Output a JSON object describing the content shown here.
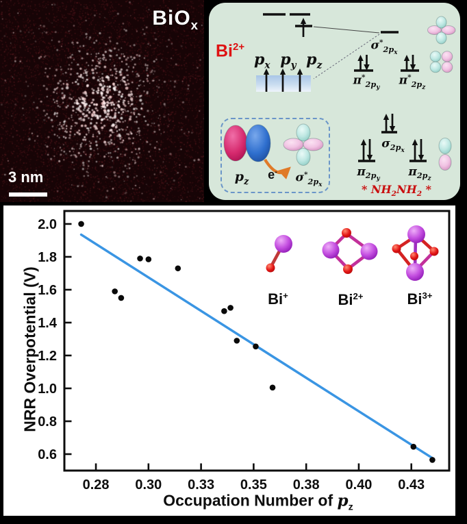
{
  "stem": {
    "label": {
      "base": "BiO",
      "sub": "x"
    },
    "scale_text": "3 nm"
  },
  "mo": {
    "bi_ion": {
      "base": "Bi",
      "sup": "2+"
    },
    "px": {
      "base": "p",
      "sub": "x"
    },
    "py": {
      "base": "p",
      "sub": "y"
    },
    "pz": {
      "base": "p",
      "sub": "z"
    },
    "sigma_star_2px": {
      "base": "σ",
      "sup": "*",
      "sub": "2p",
      "subsub": "x"
    },
    "pi_star_2py": {
      "base": "π",
      "sup": "*",
      "sub": "2p",
      "subsub": "y"
    },
    "pi_star_2pz": {
      "base": "π",
      "sup": "*",
      "sub": "2p",
      "subsub": "z"
    },
    "sigma_2px": {
      "base": "σ",
      "sub": "2p",
      "subsub": "x"
    },
    "pi_2py": {
      "base": "π",
      "sub": "2p",
      "subsub": "y"
    },
    "pi_2pz": {
      "base": "π",
      "sub": "2p",
      "subsub": "z"
    },
    "box_pz": {
      "base": "p",
      "sub": "z"
    },
    "electron": {
      "base": "e",
      "sup": "-"
    },
    "box_sigma_star": {
      "base": "σ",
      "sup": "*",
      "sub": "2p",
      "subsub": "x"
    },
    "hydrazine": {
      "pre": "* ",
      "a": "NH",
      "a_sub": "2",
      "b": "NH",
      "b_sub": "2",
      "post": " *"
    }
  },
  "chart": {
    "ylabel": "NRR Overpotential (V)",
    "xlabel": {
      "prefix": "Occupation Number of ",
      "symbol": "p",
      "sub": "z"
    },
    "inset": {
      "bi1": {
        "base": "Bi",
        "sup": "+"
      },
      "bi2": {
        "base": "Bi",
        "sup": "2+"
      },
      "bi3": {
        "base": "Bi",
        "sup": "3+"
      }
    }
  },
  "chart_data": {
    "type": "scatter",
    "title": "",
    "xlabel": "Occupation Number of pz",
    "ylabel": "NRR Overpotential (V)",
    "xlim": [
      0.26,
      0.443
    ],
    "ylim": [
      0.5,
      2.079
    ],
    "grid": false,
    "x_ticks": [
      {
        "value": 0.275,
        "label": "0.28"
      },
      {
        "value": 0.3,
        "label": "0.30"
      },
      {
        "value": 0.325,
        "label": "0.33"
      },
      {
        "value": 0.35,
        "label": "0.35"
      },
      {
        "value": 0.375,
        "label": "0.38"
      },
      {
        "value": 0.4,
        "label": "0.40"
      },
      {
        "value": 0.425,
        "label": "0.43"
      }
    ],
    "y_ticks": [
      {
        "value": 2.0,
        "label": "2.0"
      },
      {
        "value": 1.8,
        "label": "1.8"
      },
      {
        "value": 1.6,
        "label": "1.6"
      },
      {
        "value": 1.4,
        "label": "1.4"
      },
      {
        "value": 1.2,
        "label": "1.2"
      },
      {
        "value": 1.0,
        "label": "1.0"
      },
      {
        "value": 0.8,
        "label": "0.8"
      },
      {
        "value": 0.6,
        "label": "0.6"
      }
    ],
    "points": [
      [
        0.268,
        2.0
      ],
      [
        0.284,
        1.59
      ],
      [
        0.287,
        1.55
      ],
      [
        0.296,
        1.79
      ],
      [
        0.3,
        1.785
      ],
      [
        0.314,
        1.73
      ],
      [
        0.336,
        1.47
      ],
      [
        0.339,
        1.49
      ],
      [
        0.342,
        1.29
      ],
      [
        0.351,
        1.255
      ],
      [
        0.359,
        1.005
      ],
      [
        0.426,
        0.645
      ],
      [
        0.435,
        0.565
      ]
    ],
    "trend_line": {
      "x1": 0.268,
      "y1": 1.935,
      "x2": 0.4356,
      "y2": 0.571
    }
  },
  "colors": {
    "panel_green": "#d7e7da",
    "accent_red": "#de1212",
    "hydrazine_red": "#c90f0f",
    "trend_blue": "#3a95e3",
    "point_black": "#0a0a0a",
    "cyan_lobe": "#bfe8e3",
    "pink_lobe": "#f1c3e3",
    "crimson_lobe": "#d62a6e",
    "blue_lobe": "#2f6fce",
    "orange_arrow": "#e07a28",
    "purple_atom": "#bb3fd6",
    "red_atom": "#e31515"
  }
}
